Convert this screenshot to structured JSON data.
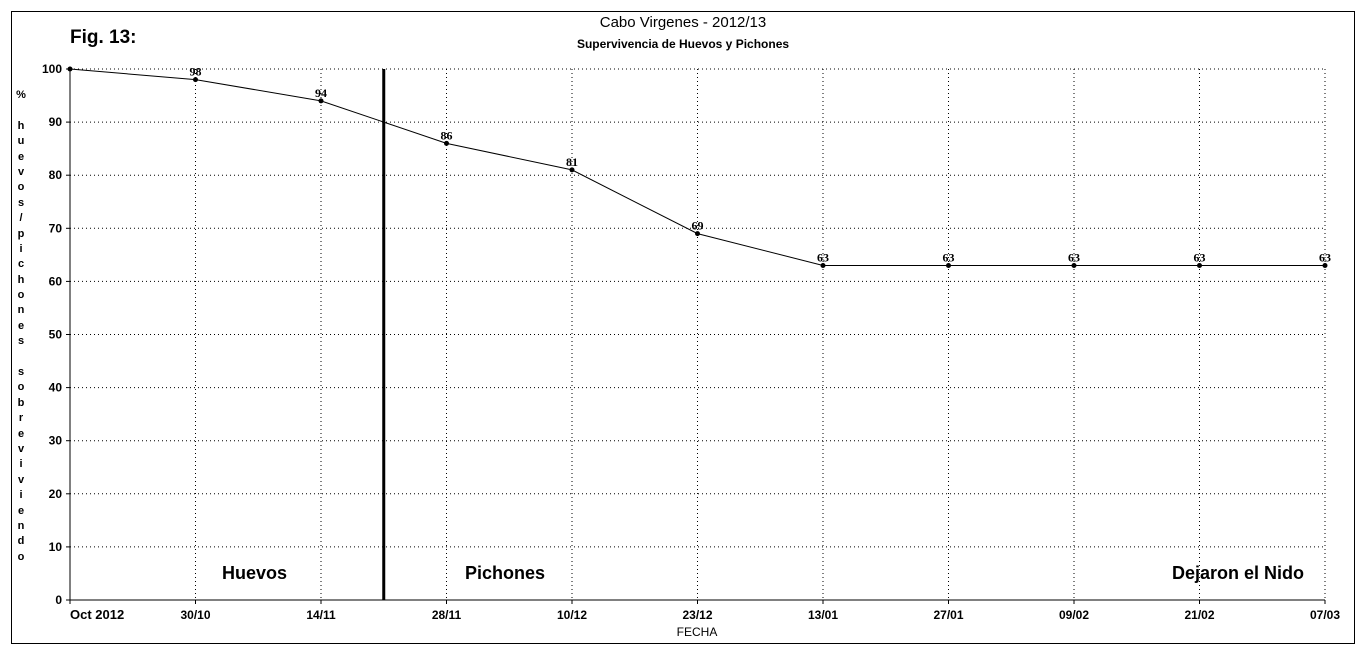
{
  "figure_label": "Fig. 13:",
  "chart_data": {
    "type": "line",
    "title": "Cabo Virgenes - 2012/13",
    "subtitle": "Supervivencia de Huevos y Pichones",
    "xlabel": "FECHA",
    "ylabel": "% huevos/pichones sobreviviendo",
    "categories": [
      "Oct 2012",
      "30/10",
      "14/11",
      "28/11",
      "10/12",
      "23/12",
      "13/01",
      "27/01",
      "09/02",
      "21/02",
      "07/03"
    ],
    "series": [
      {
        "values": [
          100,
          98,
          94,
          86,
          81,
          69,
          63,
          63,
          63,
          63,
          63
        ]
      }
    ],
    "data_labels": [
      "",
      "98",
      "94",
      "86",
      "81",
      "69",
      "63",
      "63",
      "63",
      "63",
      "63"
    ],
    "ylim": [
      0,
      100
    ],
    "yticks": [
      0,
      10,
      20,
      30,
      40,
      50,
      60,
      70,
      80,
      90,
      100
    ],
    "grid": true,
    "line_color": "#000000",
    "stage_divider_between": [
      "14/11",
      "28/11"
    ],
    "region_labels": [
      "Huevos",
      "Pichones",
      "Dejaron el Nido"
    ]
  }
}
